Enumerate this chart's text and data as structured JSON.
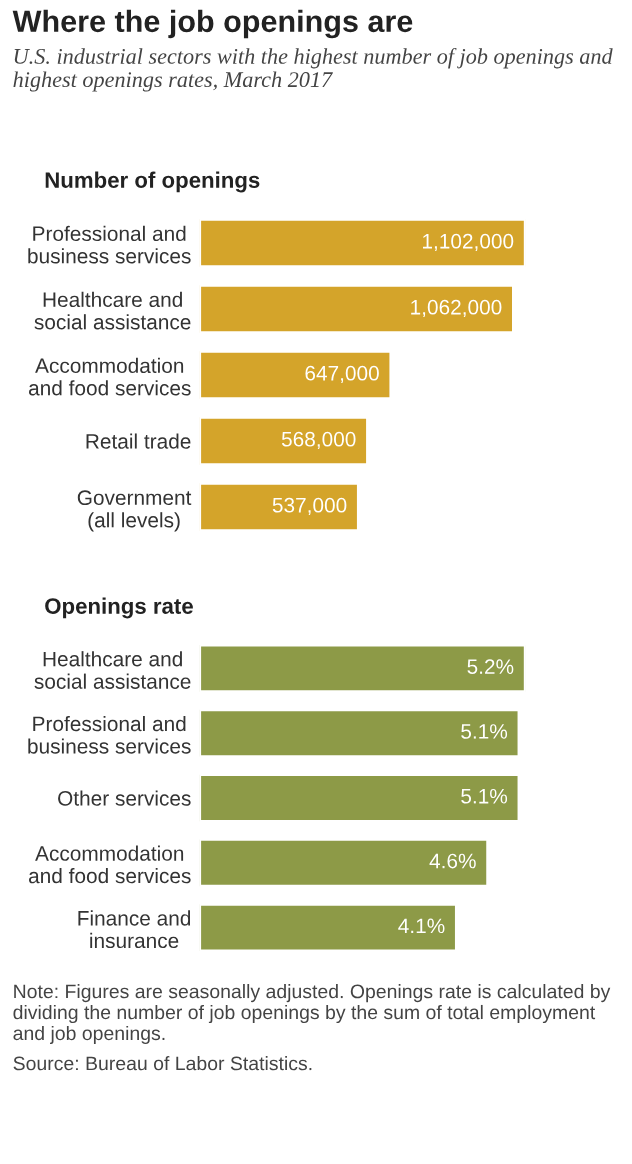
{
  "chart_data": [
    {
      "type": "other",
      "title": "Where the job openings are",
      "subtitle": "U.S. industrial sectors with the highest number of job openings and highest openings rates, March 2017"
    },
    {
      "type": "bar",
      "orientation": "horizontal",
      "title": "Number of openings",
      "tick_labels": "y",
      "categories": [
        "Professional and\nbusiness services",
        "Healthcare and\nsocial assistance",
        "Accommodation\nand food services",
        "Retail trade",
        "Government\n(all levels)"
      ],
      "values": [
        1102000,
        1062000,
        647000,
        568000,
        537000
      ],
      "value_labels": [
        "1,102,000",
        "1,062,000",
        "647,000",
        "568,000",
        "537,000"
      ],
      "color": "#d4a42a",
      "legend": false,
      "grid": false
    },
    {
      "type": "bar",
      "orientation": "horizontal",
      "title": "Openings rate",
      "tick_labels": "y",
      "categories": [
        "Healthcare and\nsocial assistance",
        "Professional and\nbusiness services",
        "Other services",
        "Accommodation\nand food services",
        "Finance and\ninsurance"
      ],
      "values": [
        5.2,
        5.1,
        5.1,
        4.6,
        4.1
      ],
      "value_labels": [
        "5.2%",
        "5.1%",
        "5.1%",
        "4.6%",
        "4.1%"
      ],
      "color": "#8d9a47",
      "legend": false,
      "grid": false,
      "annotations": [
        "Note: Figures are seasonally adjusted. Openings rate is calculated by dividing the number of job openings by the sum of total employment and job openings.",
        "Source: Bureau of Labor Statistics."
      ]
    }
  ]
}
